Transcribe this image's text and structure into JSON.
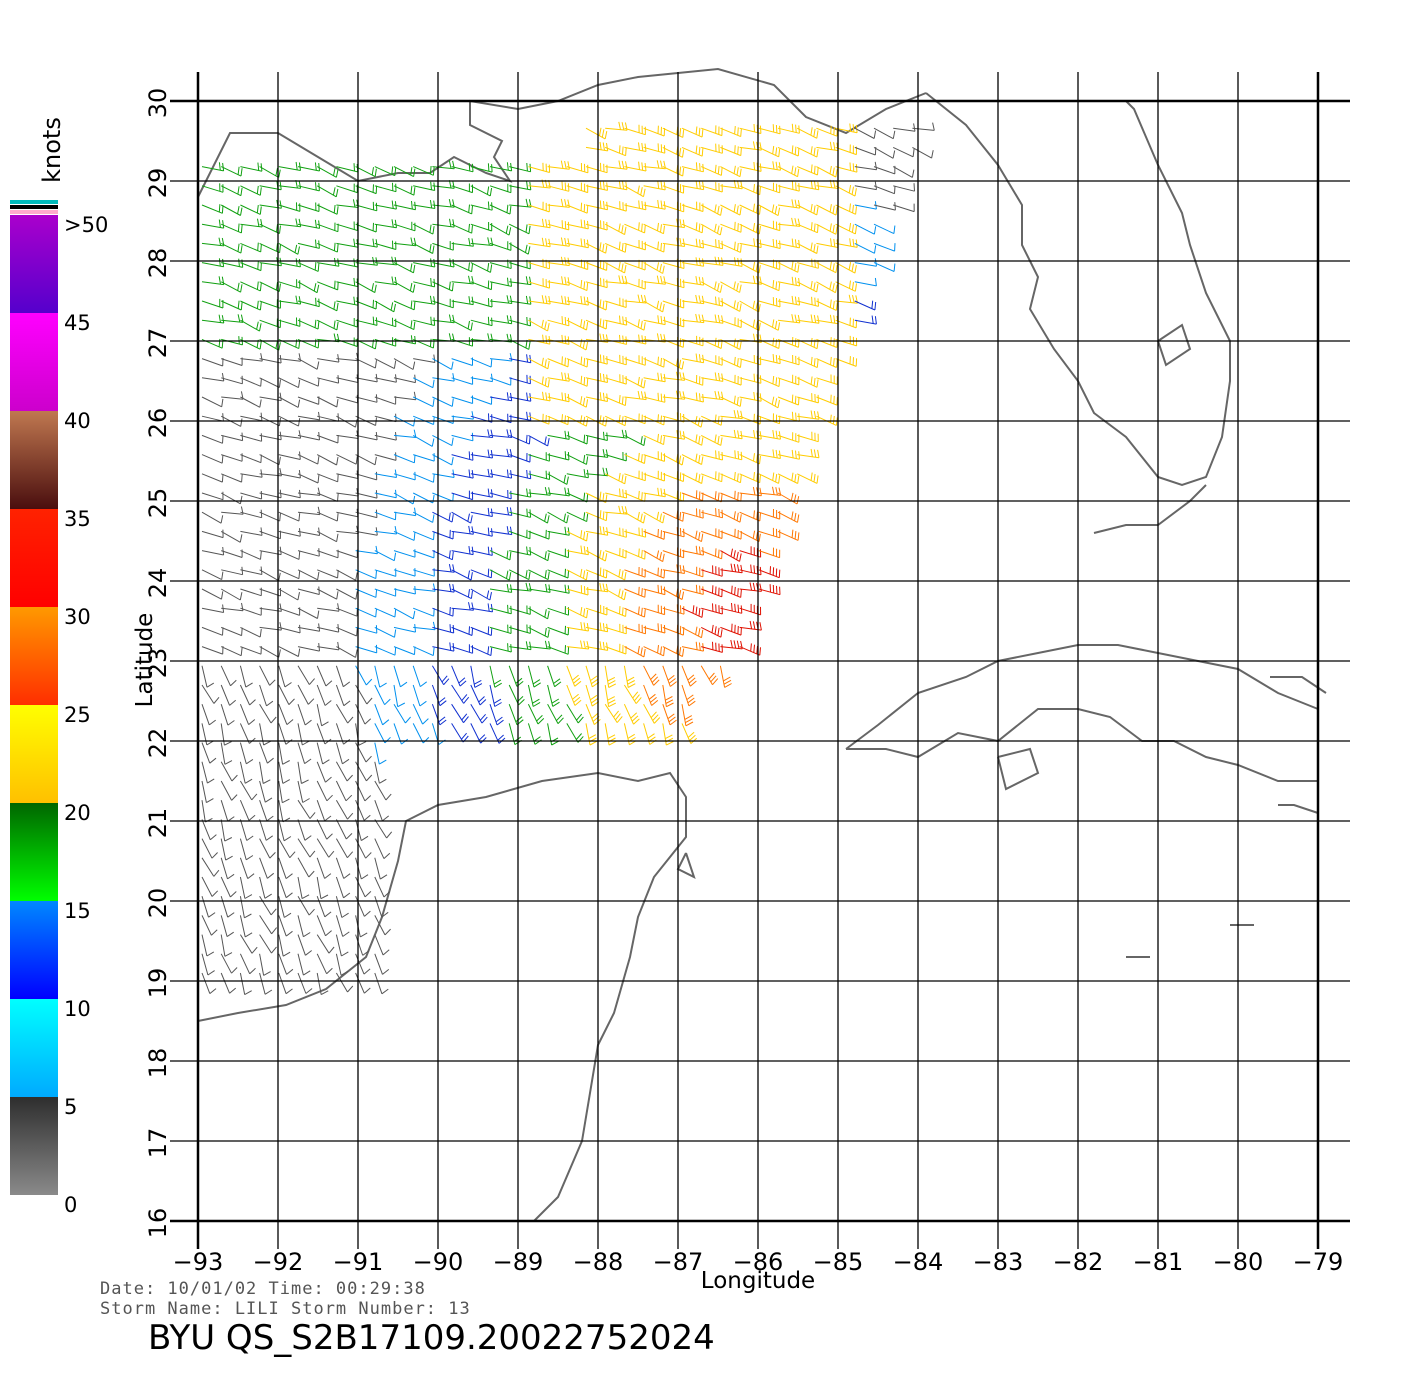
{
  "map": {
    "x_axis_title": "Longitude",
    "y_axis_title": "Latitude",
    "lon_ticks": [
      "-93",
      "-92",
      "-91",
      "-90",
      "-89",
      "-88",
      "-87",
      "-86",
      "-85",
      "-84",
      "-83",
      "-82",
      "-81",
      "-80",
      "-79"
    ],
    "lat_ticks": [
      "16",
      "17",
      "18",
      "19",
      "20",
      "21",
      "22",
      "23",
      "24",
      "25",
      "26",
      "27",
      "28",
      "29",
      "30"
    ],
    "lon_range": [
      -93,
      -79
    ],
    "lat_range": [
      16,
      30
    ],
    "coastline_color": "#666666",
    "grid": true
  },
  "colorbar": {
    "unit_label": "knots",
    "labels": [
      {
        "text": ">50",
        "value": 50
      },
      {
        "text": "45",
        "value": 45
      },
      {
        "text": "40",
        "value": 40
      },
      {
        "text": "35",
        "value": 35
      },
      {
        "text": "30",
        "value": 30
      },
      {
        "text": "25",
        "value": 25
      },
      {
        "text": "20",
        "value": 20
      },
      {
        "text": "15",
        "value": 15
      },
      {
        "text": "10",
        "value": 10
      },
      {
        "text": "5",
        "value": 5
      },
      {
        "text": "0",
        "value": 0
      }
    ],
    "bands": [
      {
        "from": 0,
        "to": 5,
        "top": "#2e2e2e",
        "bottom": "#8a8a8a"
      },
      {
        "from": 5,
        "to": 10,
        "top": "#00ffff",
        "bottom": "#00aaff"
      },
      {
        "from": 10,
        "to": 15,
        "top": "#0088ff",
        "bottom": "#0000ff"
      },
      {
        "from": 15,
        "to": 20,
        "top": "#006600",
        "bottom": "#00ff00"
      },
      {
        "from": 20,
        "to": 25,
        "top": "#ffff00",
        "bottom": "#ffc000"
      },
      {
        "from": 25,
        "to": 30,
        "top": "#ff9900",
        "bottom": "#ff2e00"
      },
      {
        "from": 30,
        "to": 35,
        "top": "#ff2200",
        "bottom": "#ff0000"
      },
      {
        "from": 35,
        "to": 40,
        "top": "#c07850",
        "bottom": "#4a0e0e"
      },
      {
        "from": 40,
        "to": 45,
        "top": "#ff00ff",
        "bottom": "#cc00cc"
      },
      {
        "from": 45,
        "to": 50,
        "top": "#aa00cc",
        "bottom": "#5500cc"
      }
    ],
    "cap_colors": [
      "#00bbbb",
      "#000000",
      "#ffaacc"
    ]
  },
  "info": {
    "date_line": "Date: 10/01/02   Time: 00:29:38",
    "storm_line": "Storm Name: LILI   Storm Number: 13",
    "file_title": "BYU  QS_S2B17109.20022752024"
  }
}
